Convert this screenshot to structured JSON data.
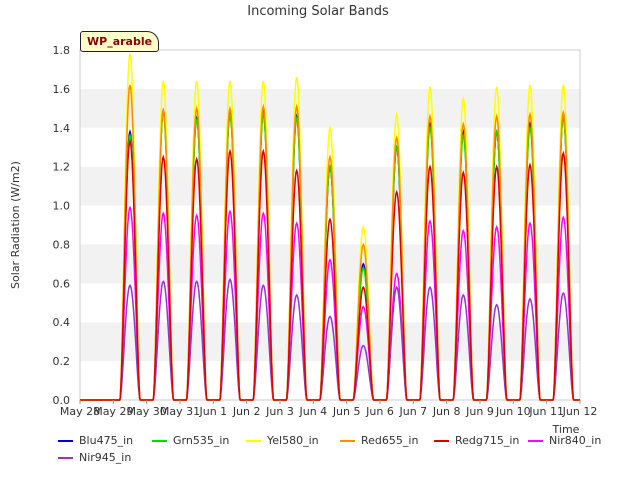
{
  "chart_data": {
    "type": "line",
    "title": "Incoming Solar Bands",
    "ylabel": "Solar Radiation (W/m2)",
    "xlabel": "Time",
    "badge": "WP_arable",
    "ylim": [
      0,
      1.8
    ],
    "yticks": [
      "0.0",
      "0.2",
      "0.4",
      "0.6",
      "0.8",
      "1.0",
      "1.2",
      "1.4",
      "1.6",
      "1.8"
    ],
    "x_range_days": [
      "2021-05-28",
      "2021-06-12"
    ],
    "xticks": [
      "May 28",
      "May 29",
      "May 30",
      "May 31",
      "Jun 1",
      "Jun 2",
      "Jun 3",
      "Jun 4",
      "Jun 5",
      "Jun 6",
      "Jun 7",
      "Jun 8",
      "Jun 9",
      "Jun 10",
      "Jun 11",
      "Jun 12"
    ],
    "grid": "horizontal bands",
    "legend_placement": "bottom",
    "day_labels": [
      "May 28",
      "May 29",
      "May 30",
      "May 31",
      "Jun 1",
      "Jun 2",
      "Jun 3",
      "Jun 4",
      "Jun 5",
      "Jun 6",
      "Jun 7",
      "Jun 8",
      "Jun 9",
      "Jun 10",
      "Jun 11"
    ],
    "series": [
      {
        "name": "Blu475_in",
        "color": "#0000cc",
        "daily_peak": [
          0,
          1.38,
          1.49,
          1.45,
          1.48,
          1.48,
          1.46,
          1.2,
          0.7,
          1.3,
          1.42,
          1.38,
          1.38,
          1.42,
          1.46
        ]
      },
      {
        "name": "Grn535_in",
        "color": "#00dd00",
        "daily_peak": [
          0,
          1.36,
          1.48,
          1.44,
          1.46,
          1.47,
          1.45,
          1.2,
          0.68,
          1.3,
          1.4,
          1.36,
          1.38,
          1.4,
          1.45
        ]
      },
      {
        "name": "Yel580_in",
        "color": "#ffff00",
        "daily_peak": [
          0,
          1.78,
          1.64,
          1.64,
          1.64,
          1.64,
          1.66,
          1.4,
          0.89,
          1.47,
          1.61,
          1.55,
          1.61,
          1.62,
          1.62
        ]
      },
      {
        "name": "Red655_in",
        "color": "#ff8c00",
        "daily_peak": [
          0,
          1.62,
          1.49,
          1.5,
          1.5,
          1.51,
          1.51,
          1.25,
          0.8,
          1.35,
          1.46,
          1.42,
          1.46,
          1.47,
          1.48
        ]
      },
      {
        "name": "Redg715_in",
        "color": "#dd0000",
        "daily_peak": [
          0,
          1.33,
          1.25,
          1.24,
          1.28,
          1.28,
          1.18,
          0.93,
          0.58,
          1.07,
          1.2,
          1.17,
          1.2,
          1.21,
          1.27
        ]
      },
      {
        "name": "Nir840_in",
        "color": "#ff00ff",
        "daily_peak": [
          0,
          0.99,
          0.96,
          0.95,
          0.97,
          0.96,
          0.91,
          0.72,
          0.48,
          0.65,
          0.92,
          0.87,
          0.89,
          0.91,
          0.94
        ]
      },
      {
        "name": "Nir945_in",
        "color": "#9933cc",
        "daily_peak": [
          0,
          0.59,
          0.61,
          0.61,
          0.62,
          0.59,
          0.54,
          0.43,
          0.28,
          0.58,
          0.58,
          0.54,
          0.49,
          0.52,
          0.55
        ]
      }
    ]
  }
}
